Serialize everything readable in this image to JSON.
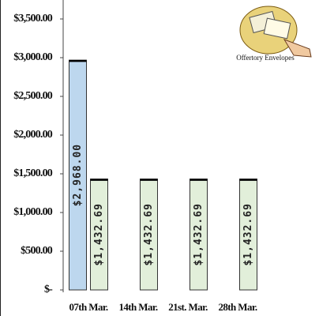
{
  "chart_data": {
    "type": "bar",
    "categories": [
      "07th Mar.",
      "14th Mar.",
      "21st. Mar.",
      "28th Mar."
    ],
    "series": [
      {
        "color": "#bdd7ee",
        "values": [
          2968,
          null,
          null,
          null
        ],
        "value_labels": [
          "$2,968.00",
          null,
          null,
          null
        ]
      },
      {
        "color": "#e2efda",
        "values": [
          1432.69,
          1432.69,
          1432.69,
          1432.69
        ],
        "value_labels": [
          "$1,432.69",
          "$1,432.69",
          "$1,432.69",
          "$1,432.69"
        ]
      }
    ],
    "ylim": [
      0,
      3500
    ],
    "yticks": [
      {
        "value": 0,
        "label": "$-"
      },
      {
        "value": 500,
        "label": "$500.00"
      },
      {
        "value": 1000,
        "label": "$1,000.00"
      },
      {
        "value": 1500,
        "label": "$1,500.00"
      },
      {
        "value": 2000,
        "label": "$2,000.00"
      },
      {
        "value": 2500,
        "label": "$2,500.00"
      },
      {
        "value": 3000,
        "label": "$3,000.00"
      },
      {
        "value": 3500,
        "label": "$3,500.00"
      }
    ],
    "annotations": [
      "Offertory Envelopes"
    ]
  }
}
